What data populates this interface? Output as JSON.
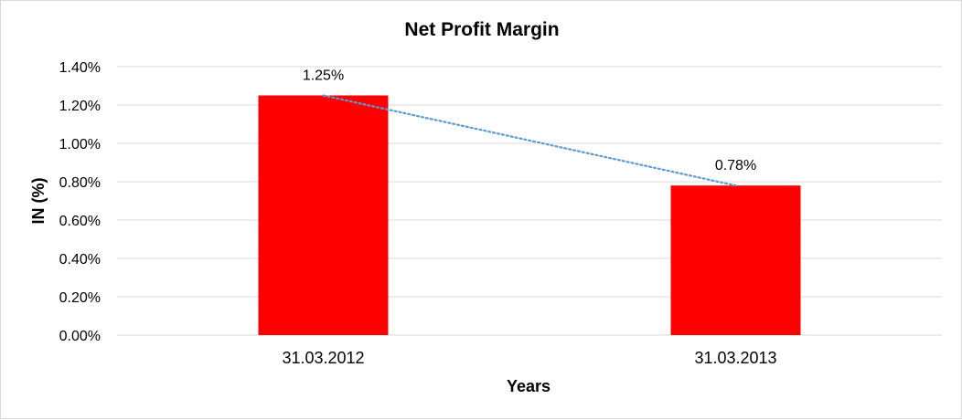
{
  "chart_data": {
    "type": "bar",
    "title": "Net Profit Margin",
    "xlabel": "Years",
    "ylabel": "IN (%)",
    "categories": [
      "31.03.2012",
      "31.03.2013"
    ],
    "values": [
      1.25,
      0.78
    ],
    "data_labels": [
      "1.25%",
      "0.78%"
    ],
    "ylim": [
      0,
      1.4
    ],
    "ytick_values": [
      0,
      0.2,
      0.4,
      0.6,
      0.8,
      1.0,
      1.2,
      1.4
    ],
    "yticks": [
      "0.00%",
      "0.20%",
      "0.40%",
      "0.60%",
      "0.80%",
      "1.00%",
      "1.20%",
      "1.40%"
    ],
    "grid": true,
    "trendline": "linear",
    "colors": {
      "bar": "#ff0000",
      "trendline": "#5b9bd5",
      "grid": "#d9d9d9"
    }
  }
}
